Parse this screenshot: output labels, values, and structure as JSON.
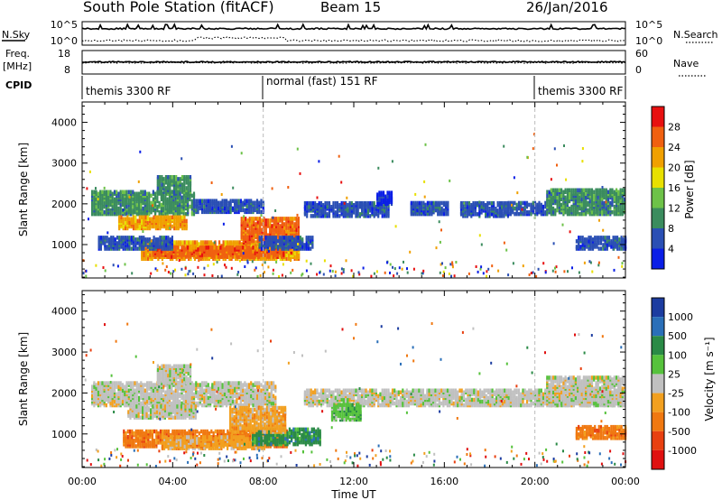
{
  "header": {
    "station": "South Pole Station (fitACF)",
    "beam": "Beam 15",
    "date": "26/Jan/2016"
  },
  "top_panels": {
    "nsky_label": "N.Sky",
    "nsky_ticks": [
      "10^5",
      "10^0"
    ],
    "nsearch_label": "N.Search",
    "nsearch_ticks": [
      "10^5",
      "10^0"
    ],
    "freq_label_1": "Freq.",
    "freq_label_2": "[MHz]",
    "freq_ticks": [
      "18",
      "8"
    ],
    "nave_label": "Nave",
    "nave_ticks": [
      "60",
      "0"
    ],
    "cpid_label": "CPID",
    "cpid_segments": [
      {
        "label": "themis 3300 RF",
        "start_h": 0,
        "end_h": 8
      },
      {
        "label": "normal (fast) 151 RF",
        "start_h": 8,
        "end_h": 20
      },
      {
        "label": "themis 3300 RF",
        "start_h": 20,
        "end_h": 24
      }
    ]
  },
  "chart_data": [
    {
      "type": "heatmap",
      "name": "power",
      "ylabel": "Slant Range [km]",
      "ylim": [
        180,
        4500
      ],
      "yticks": [
        1000,
        2000,
        3000,
        4000
      ],
      "xlim": [
        0,
        24
      ],
      "colorbar": {
        "label": "Power [dB]",
        "ticks": [
          "4",
          "8",
          "12",
          "16",
          "20",
          "24",
          "28"
        ],
        "colors": [
          "#0a1ee6",
          "#2a4fb4",
          "#3b8c5e",
          "#6dc248",
          "#e8e000",
          "#f0a000",
          "#f06010",
          "#e81010"
        ]
      },
      "regions": [
        {
          "t0": 0.4,
          "t1": 4.9,
          "r0": 1700,
          "r1": 2250,
          "c": 2
        },
        {
          "t0": 4.9,
          "t1": 8.0,
          "r0": 1750,
          "r1": 2050,
          "c": 1
        },
        {
          "t0": 3.3,
          "t1": 4.8,
          "r0": 2200,
          "r1": 2650,
          "c": 2
        },
        {
          "t0": 1.6,
          "t1": 4.6,
          "r0": 1350,
          "r1": 1650,
          "c": 5
        },
        {
          "t0": 2.6,
          "t1": 9.6,
          "r0": 600,
          "r1": 1050,
          "c": 5
        },
        {
          "t0": 3.1,
          "t1": 8.9,
          "r0": 650,
          "r1": 900,
          "c": 6
        },
        {
          "t0": 7.0,
          "t1": 9.6,
          "r0": 1000,
          "r1": 1600,
          "c": 6
        },
        {
          "t0": 0.7,
          "t1": 4.0,
          "r0": 850,
          "r1": 1150,
          "c": 1
        },
        {
          "t0": 7.8,
          "t1": 10.2,
          "r0": 850,
          "r1": 1150,
          "c": 1
        },
        {
          "t0": 9.8,
          "t1": 13.5,
          "r0": 1650,
          "r1": 2000,
          "c": 1
        },
        {
          "t0": 13.0,
          "t1": 13.7,
          "r0": 1950,
          "r1": 2250,
          "c": 0
        },
        {
          "t0": 14.5,
          "t1": 16.2,
          "r0": 1700,
          "r1": 2000,
          "c": 1
        },
        {
          "t0": 16.7,
          "t1": 18.8,
          "r0": 1650,
          "r1": 2000,
          "c": 1
        },
        {
          "t0": 18.8,
          "t1": 20.5,
          "r0": 1700,
          "r1": 2000,
          "c": 1
        },
        {
          "t0": 20.5,
          "t1": 24.0,
          "r0": 1700,
          "r1": 2300,
          "c": 2
        },
        {
          "t0": 21.8,
          "t1": 24.0,
          "r0": 850,
          "r1": 1150,
          "c": 1
        }
      ]
    },
    {
      "type": "heatmap",
      "name": "velocity",
      "ylabel": "Slant Range [km]",
      "xlabel": "Time UT",
      "xticks": [
        "00:00",
        "04:00",
        "08:00",
        "12:00",
        "16:00",
        "20:00",
        "00:00"
      ],
      "ylim": [
        180,
        4500
      ],
      "yticks": [
        1000,
        2000,
        3000,
        4000
      ],
      "xlim": [
        0,
        24
      ],
      "colorbar": {
        "label": "Velocity [m s⁻¹]",
        "ticks": [
          "1000",
          "500",
          "100",
          "25",
          "-25",
          "-100",
          "-500",
          "-1000"
        ],
        "colors": [
          "#1c3ca0",
          "#2a6fb8",
          "#2a8a46",
          "#56c23c",
          "#c0c0c0",
          "#f2a020",
          "#f07810",
          "#e84010",
          "#e01010"
        ]
      },
      "regions": [
        {
          "t0": 0.4,
          "t1": 8.5,
          "r0": 1650,
          "r1": 2200,
          "c": 4
        },
        {
          "t0": 3.3,
          "t1": 4.8,
          "r0": 2200,
          "r1": 2650,
          "c": 4
        },
        {
          "t0": 9.8,
          "t1": 24.0,
          "r0": 1650,
          "r1": 2050,
          "c": 4
        },
        {
          "t0": 20.5,
          "t1": 24.0,
          "r0": 1650,
          "r1": 2350,
          "c": 4
        },
        {
          "t0": 2.0,
          "t1": 5.0,
          "r0": 1350,
          "r1": 1650,
          "c": 4
        },
        {
          "t0": 1.8,
          "t1": 9.0,
          "r0": 650,
          "r1": 1050,
          "c": 6
        },
        {
          "t0": 3.5,
          "t1": 8.0,
          "r0": 600,
          "r1": 900,
          "c": 5
        },
        {
          "t0": 7.5,
          "t1": 10.5,
          "r0": 700,
          "r1": 1100,
          "c": 2
        },
        {
          "t0": 6.5,
          "t1": 9.0,
          "r0": 1000,
          "r1": 1600,
          "c": 5
        },
        {
          "t0": 11.0,
          "t1": 12.3,
          "r0": 1300,
          "r1": 1700,
          "c": 3
        },
        {
          "t0": 21.8,
          "t1": 24.0,
          "r0": 850,
          "r1": 1150,
          "c": 6
        }
      ]
    }
  ]
}
